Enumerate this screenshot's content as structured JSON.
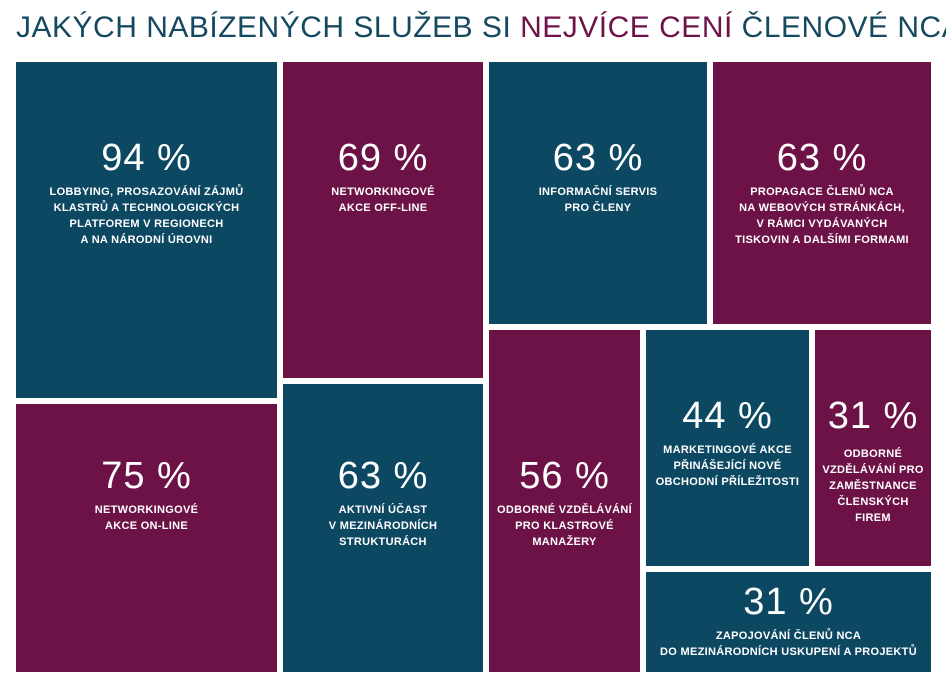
{
  "title": {
    "parts": [
      "JAKÝCH NABÍZENÝCH SLUŽEB SI ",
      "NEJVÍCE CENÍ",
      " ČLENOVÉ NCA"
    ]
  },
  "tiles": [
    {
      "value": "94 %",
      "lines": [
        "LOBBYING, PROSAZOVÁNÍ ZÁJMŮ",
        "KLASTRŮ A TECHNOLOGICKÝCH",
        "PLATFOREM V REGIONECH",
        "A NA NÁRODNÍ ÚROVNI"
      ]
    },
    {
      "value": "69 %",
      "lines": [
        "NETWORKINGOVÉ",
        "AKCE OFF-LINE"
      ]
    },
    {
      "value": "63 %",
      "lines": [
        "INFORMAČNÍ SERVIS",
        "PRO ČLENY"
      ]
    },
    {
      "value": "63 %",
      "lines": [
        "PROPAGACE ČLENŮ NCA",
        "NA WEBOVÝCH STRÁNKÁCH,",
        "V RÁMCI VYDÁVANÝCH",
        "TISKOVIN A DALŠÍMI FORMAMI"
      ]
    },
    {
      "value": "75 %",
      "lines": [
        "NETWORKINGOVÉ",
        "AKCE ON-LINE"
      ]
    },
    {
      "value": "63 %",
      "lines": [
        "AKTIVNÍ ÚČAST",
        "V MEZINÁRODNÍCH",
        "STRUKTURÁCH"
      ]
    },
    {
      "value": "56 %",
      "lines": [
        "ODBORNÉ VZDĚLÁVÁNÍ",
        "PRO KLASTROVÉ",
        "MANAŽERY"
      ]
    },
    {
      "value": "44 %",
      "lines": [
        "MARKETINGOVÉ AKCE",
        "PŘINÁŠEJÍCÍ NOVÉ",
        "OBCHODNÍ PŘÍLEŽITOSTI"
      ]
    },
    {
      "value": "31 %",
      "lines": [
        "ODBORNÉ",
        "VZDĚLÁVÁNÍ PRO",
        "ZAMĚSTNANCE",
        "ČLENSKÝCH",
        "FIREM"
      ]
    },
    {
      "value": "31 %",
      "lines": [
        "ZAPOJOVÁNÍ ČLENŮ NCA",
        "DO MEZINÁRODNÍCH USKUPENÍ A PROJEKTŮ"
      ]
    }
  ]
}
